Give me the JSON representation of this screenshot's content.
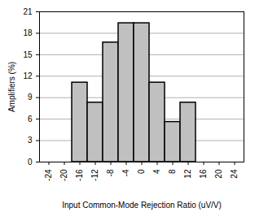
{
  "chart_data": {
    "type": "bar",
    "xlabel": "Input Common-Mode Rejection Ratio (uV/V)",
    "ylabel": "Amplifiers (%)",
    "categories": [
      "-24",
      "-20",
      "-16",
      "-12",
      "-8",
      "-4",
      "0",
      "4",
      "8",
      "12",
      "16",
      "20",
      "24"
    ],
    "values": [
      0,
      0,
      11.1,
      8.3,
      16.7,
      19.4,
      19.4,
      11.1,
      5.6,
      8.3,
      0,
      0,
      0
    ],
    "color": "#c0c0c0",
    "ylim": [
      0,
      21
    ],
    "yticks": [
      0,
      3,
      6,
      9,
      12,
      15,
      18,
      21
    ],
    "grid": true
  }
}
